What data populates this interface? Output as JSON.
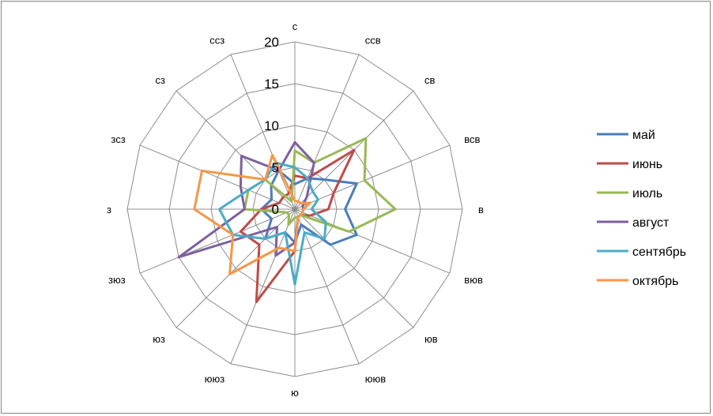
{
  "chart_data": {
    "type": "radar",
    "categories": [
      "с",
      "ссв",
      "св",
      "всв",
      "в",
      "вюв",
      "юв",
      "ююв",
      "ю",
      "ююз",
      "юз",
      "зюз",
      "з",
      "зсз",
      "сз",
      "ссз"
    ],
    "radial_ticks": [
      "0",
      "5",
      "10",
      "15",
      "20"
    ],
    "rlim": [
      0,
      20
    ],
    "grid": true,
    "legend_position": "right",
    "series": [
      {
        "name": "май",
        "color": "#4A7EBB",
        "values": [
          3,
          4,
          5,
          8,
          6,
          8,
          6,
          2,
          4,
          3,
          5,
          3,
          4,
          3,
          4,
          5
        ]
      },
      {
        "name": "июнь",
        "color": "#BE4B48",
        "values": [
          4,
          4,
          10,
          5,
          4,
          2,
          1,
          1,
          5,
          12,
          6,
          7,
          4,
          2,
          2,
          2
        ]
      },
      {
        "name": "июль",
        "color": "#98B954",
        "values": [
          7,
          6,
          12,
          9,
          12,
          7,
          1,
          1,
          1,
          2,
          1,
          1,
          6,
          6,
          5,
          1
        ]
      },
      {
        "name": "август",
        "color": "#7D60A0",
        "values": [
          8,
          6,
          2,
          1,
          1,
          1,
          1,
          1,
          4,
          6,
          3,
          15,
          6,
          7,
          9,
          5
        ]
      },
      {
        "name": "сентябрь",
        "color": "#4BACC6",
        "values": [
          5,
          4,
          3,
          3,
          2,
          4,
          5,
          3,
          9,
          3,
          5,
          8,
          9,
          6,
          5,
          6
        ]
      },
      {
        "name": "октябрь",
        "color": "#F79646",
        "values": [
          1,
          1,
          1,
          2,
          1,
          1,
          1,
          1,
          5,
          5,
          11,
          8,
          12,
          12,
          5,
          7
        ]
      }
    ]
  }
}
